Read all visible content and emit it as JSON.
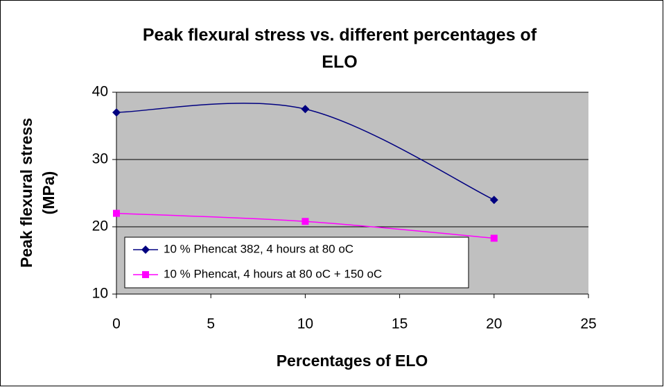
{
  "chart_data": {
    "type": "line",
    "title": [
      "Peak flexural stress vs. different percentages of",
      "ELO"
    ],
    "x_label": "Percentages of ELO",
    "y_label": [
      "Peak flexural stress",
      "(MPa)"
    ],
    "x": [
      0,
      10,
      20
    ],
    "series": [
      {
        "name": "10 % Phencat 382, 4 hours at 80 oC",
        "color": "#000080",
        "marker": "diamond",
        "values": [
          37,
          37.5,
          24
        ]
      },
      {
        "name": "10 % Phencat, 4 hours at 80 oC + 150 oC",
        "color": "#ff00ff",
        "marker": "square",
        "values": [
          22,
          20.8,
          18.3
        ]
      }
    ],
    "xlim": [
      0,
      25
    ],
    "xticks": [
      0,
      5,
      10,
      15,
      20,
      25
    ],
    "ylim": [
      10,
      40
    ],
    "yticks": [
      10,
      20,
      30,
      40
    ],
    "grid": true,
    "smooth": true,
    "legend": "lower left"
  }
}
